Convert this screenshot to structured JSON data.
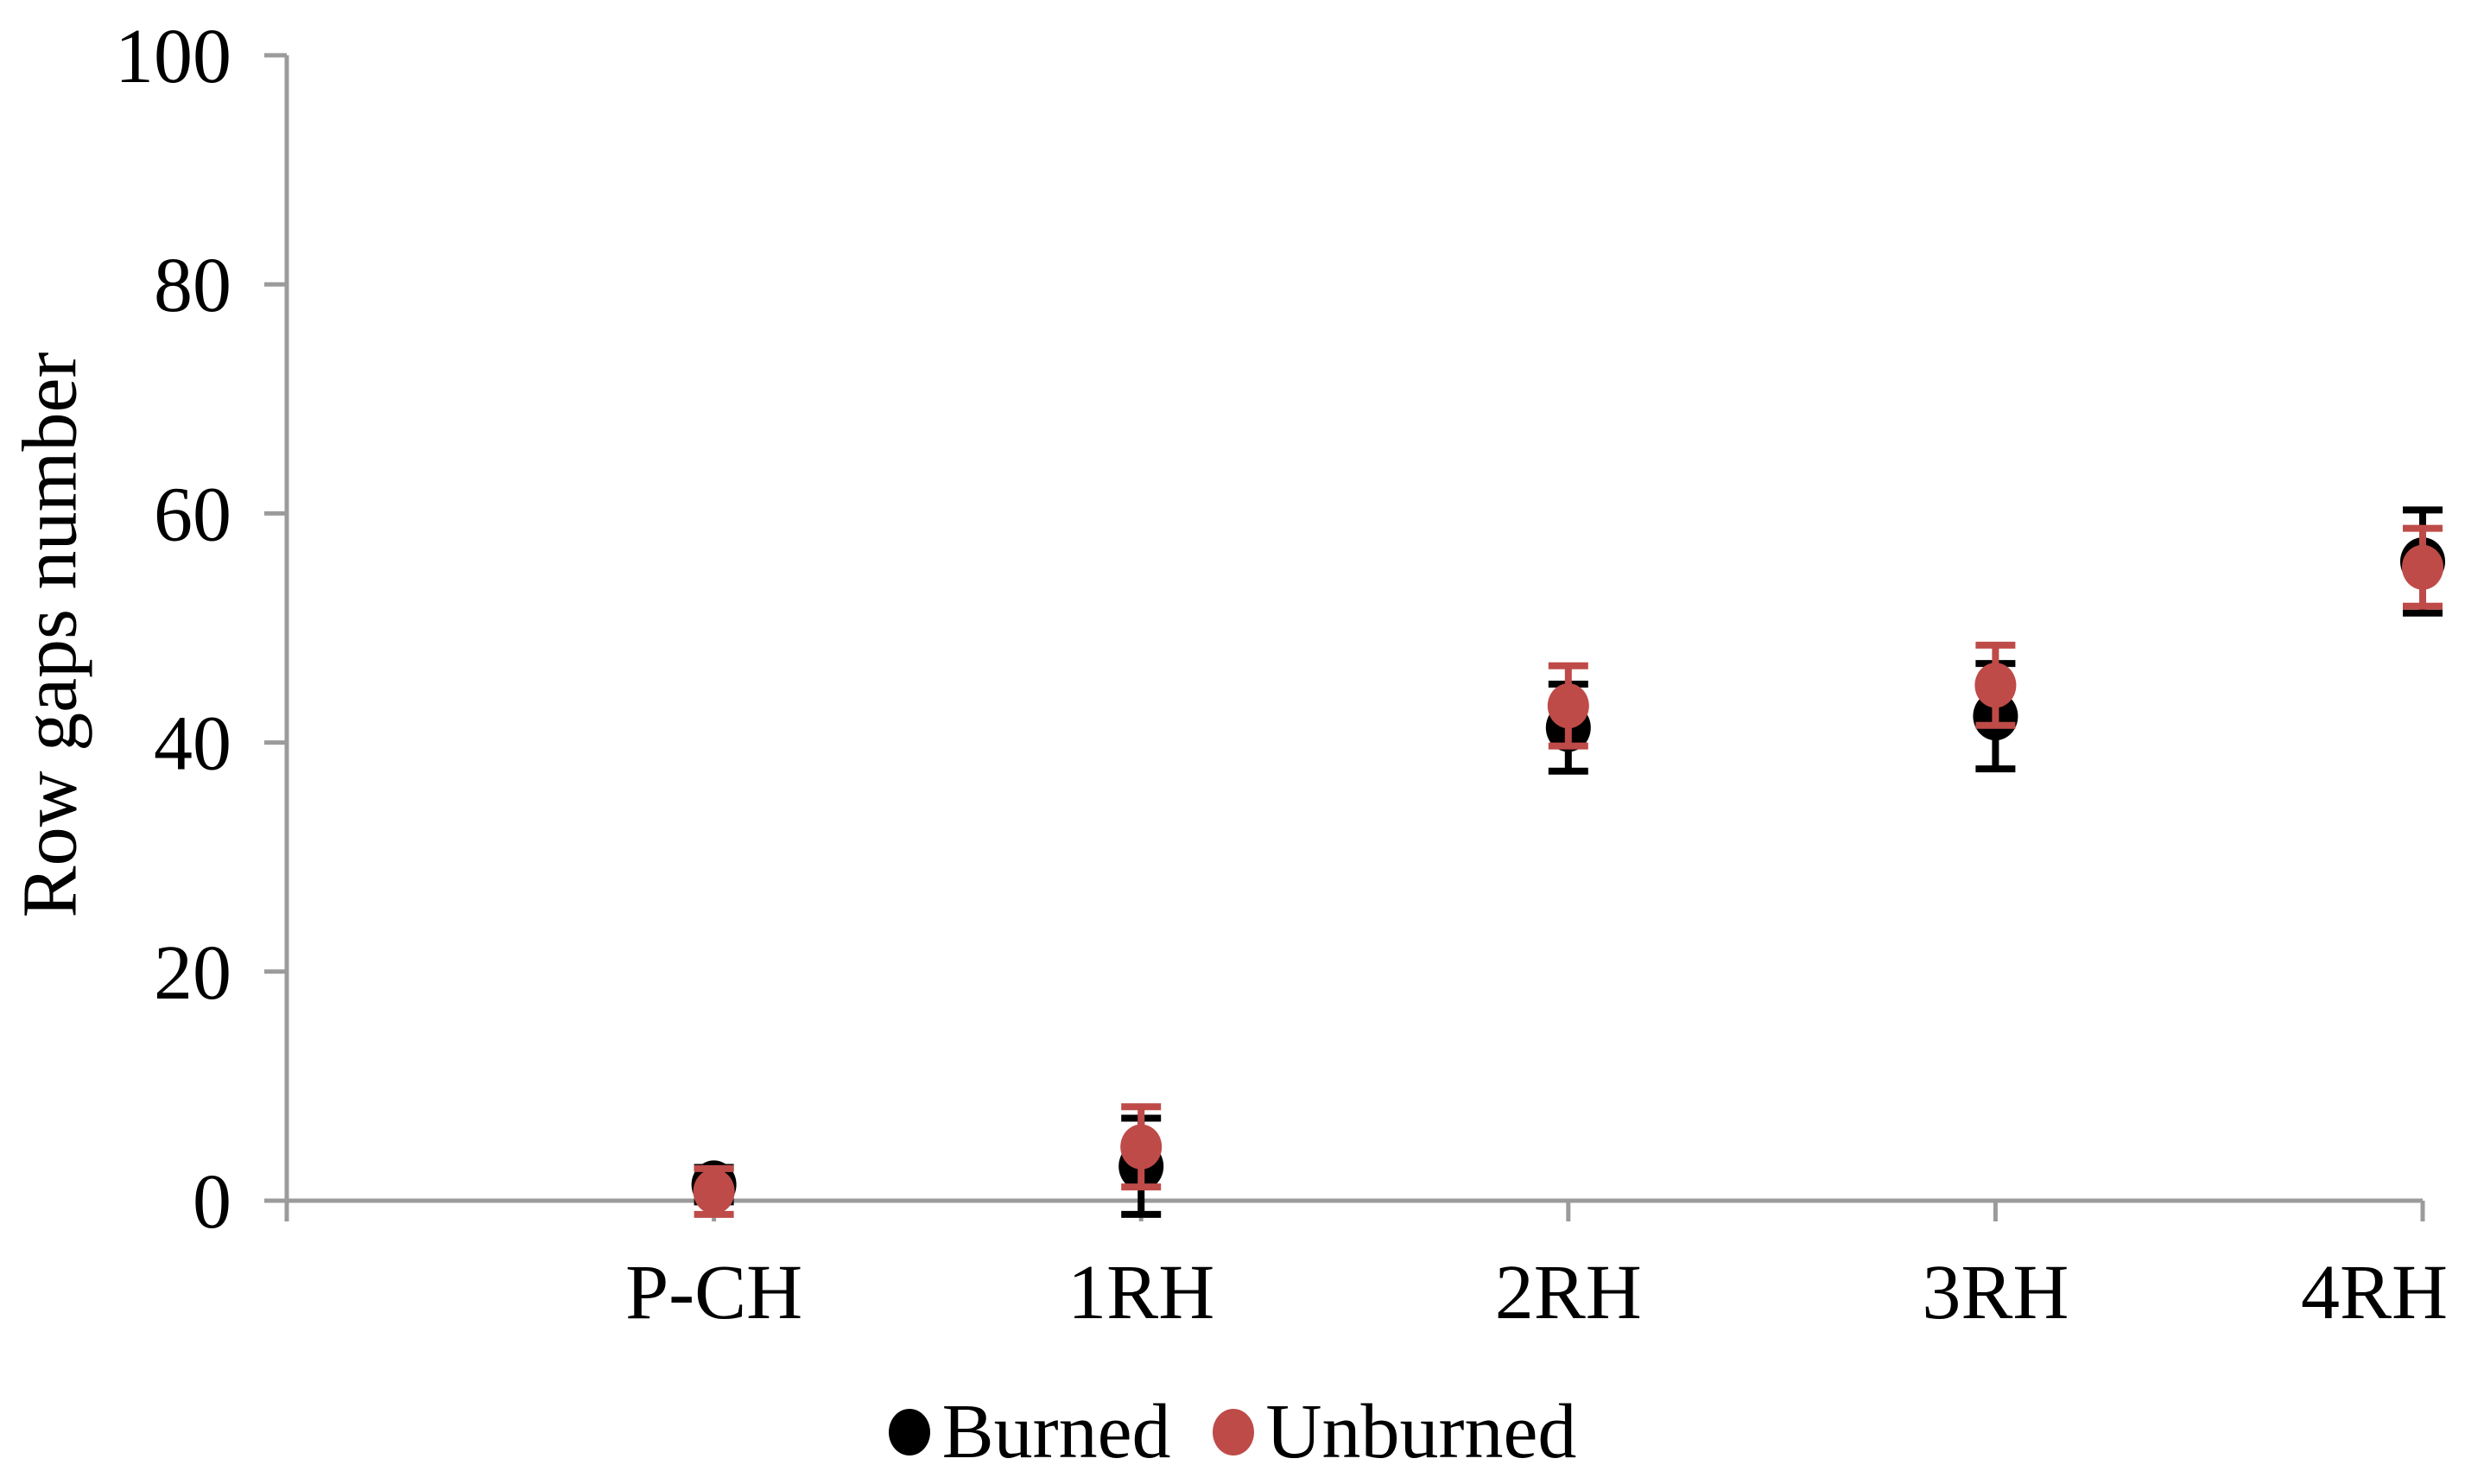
{
  "chart_data": {
    "type": "scatter",
    "title": "",
    "xlabel": "",
    "ylabel": "Row gaps number",
    "ylim": [
      0,
      100
    ],
    "yticks": [
      0,
      20,
      40,
      60,
      80,
      100
    ],
    "categories": [
      "P-CH",
      "1RH",
      "2RH",
      "3RH",
      "4RH"
    ],
    "series": [
      {
        "name": "Burned",
        "color": "#000000",
        "values": [
          1.4,
          3.0,
          41.3,
          42.3,
          55.8
        ],
        "errors": [
          1.5,
          4.2,
          3.8,
          4.6,
          4.5
        ]
      },
      {
        "name": "Unburned",
        "color": "#BE4B48",
        "values": [
          0.8,
          4.7,
          43.2,
          45.0,
          55.3
        ],
        "errors": [
          2.0,
          3.5,
          3.5,
          3.5,
          3.4
        ]
      }
    ],
    "error_bars": true,
    "grid": false,
    "legend_position": "bottom",
    "axis_color": "#9B9B9B",
    "text_color": "#000000",
    "background": "#FFFFFF"
  }
}
